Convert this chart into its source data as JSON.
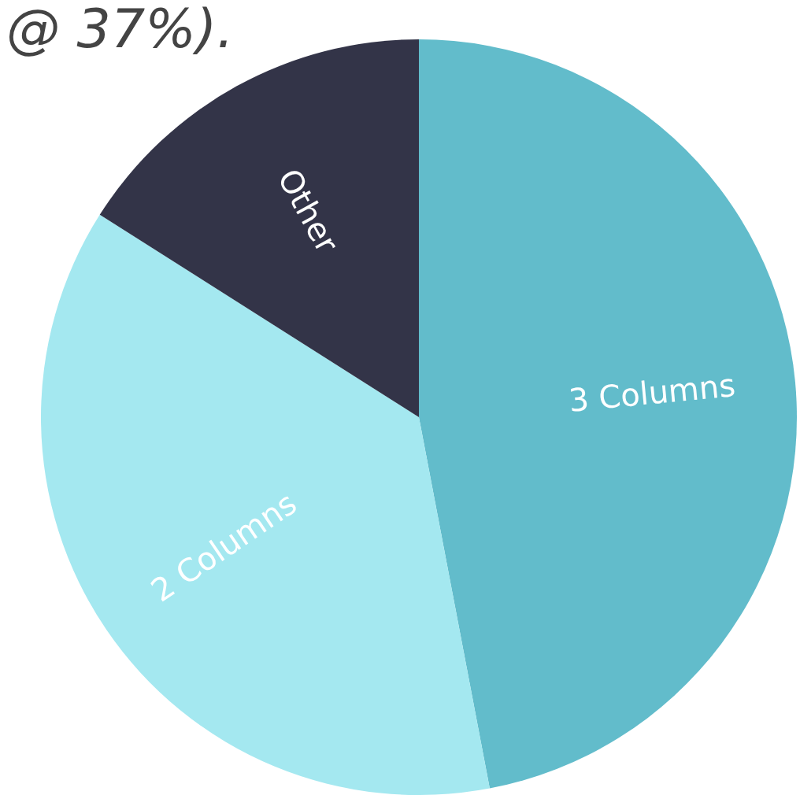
{
  "chart_data": {
    "type": "pie",
    "categories": [
      "3 Columns",
      "2 Columns",
      "Other"
    ],
    "values": [
      47,
      37,
      16
    ],
    "colors": [
      "#62bccb",
      "#a4e8f0",
      "#333448"
    ],
    "annotations": [
      "@ 37%)."
    ]
  }
}
